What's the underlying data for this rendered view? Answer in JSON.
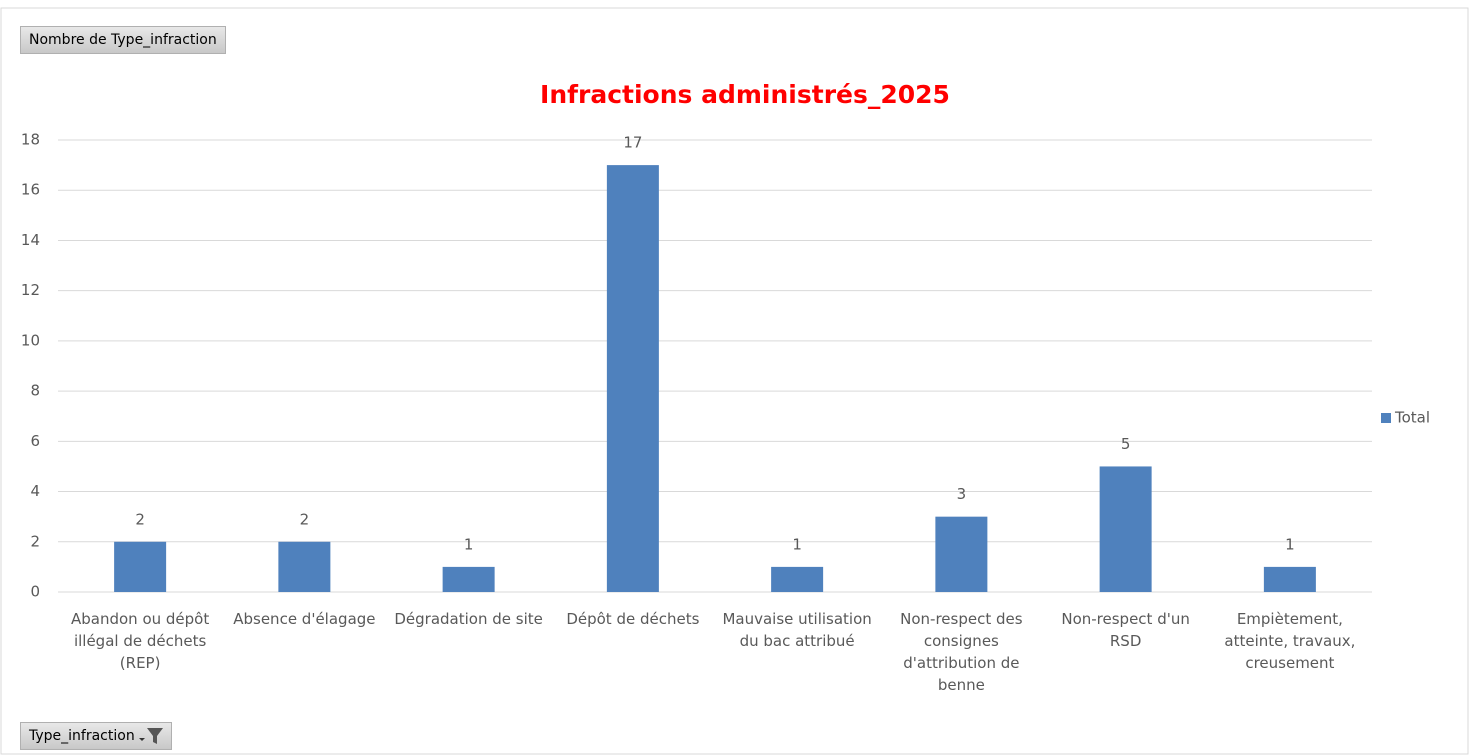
{
  "chart_data": {
    "type": "bar",
    "title": "Infractions administrés_2025",
    "value_field": "Nombre de Type_infraction",
    "axis_field": "Type_infraction",
    "categories": [
      "Abandon ou dépôt illégal de déchets (REP)",
      "Absence d'élagage",
      "Dégradation de site",
      "Dépôt de déchets",
      "Mauvaise utilisation du bac attribué",
      "Non-respect des consignes d'attribution de benne",
      "Non-respect d'un RSD",
      "Empiètement, atteinte, travaux, creusement"
    ],
    "series": [
      {
        "name": "Total",
        "color": "#4f81bd",
        "values": [
          2,
          2,
          1,
          17,
          1,
          3,
          5,
          1
        ]
      }
    ],
    "ylim": [
      0,
      18
    ],
    "yticks": [
      0,
      2,
      4,
      6,
      8,
      10,
      12,
      14,
      16,
      18
    ],
    "grid": true,
    "legend": "right",
    "data_labels": true
  }
}
